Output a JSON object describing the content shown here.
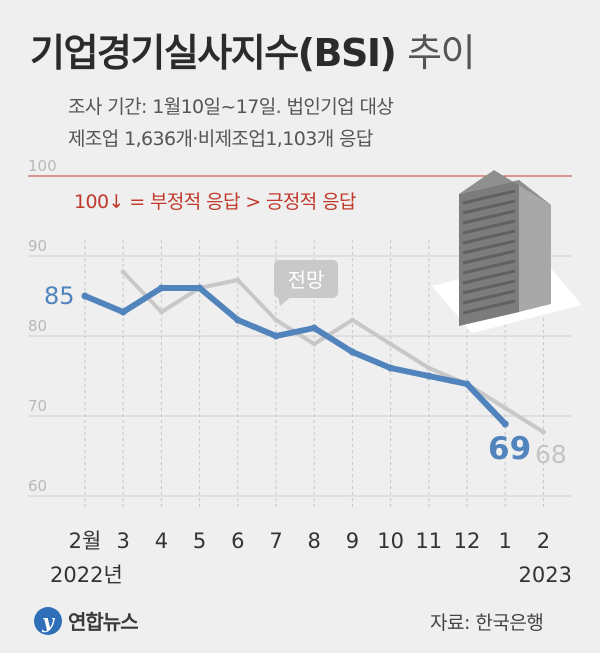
{
  "header": {
    "title": "기업경기실사지수(BSI)",
    "title_suffix": "추이",
    "survey_line": "조사 기간: 1월10일~17일. 법인기업 대상",
    "sample_line": "제조업 1,636개·비제조업1,103개 응답"
  },
  "chart_data": {
    "type": "line",
    "categories": [
      "2월",
      "3",
      "4",
      "5",
      "6",
      "7",
      "8",
      "9",
      "10",
      "11",
      "12",
      "1",
      "2"
    ],
    "year_labels": [
      {
        "text": "2022년",
        "category_index": 0
      },
      {
        "text": "2023",
        "category_index": 12
      }
    ],
    "yticks": [
      60,
      70,
      80,
      90,
      100
    ],
    "ylim": [
      60,
      100
    ],
    "reference_line": {
      "value": 100,
      "label": "100↓ = 부정적 응답 > 긍정적 응답",
      "color": "#c0392b"
    },
    "series": [
      {
        "name": "전망",
        "color": "#c8c8c8",
        "values": [
          null,
          88,
          83,
          86,
          87,
          82,
          79,
          82,
          79,
          76,
          74,
          71,
          68
        ],
        "end_label": "68"
      },
      {
        "name": "",
        "color": "#5183bd",
        "values": [
          85,
          83,
          86,
          86,
          82,
          80,
          81,
          78,
          76,
          75,
          74,
          69,
          null
        ],
        "start_label": "85",
        "end_label": "69"
      }
    ]
  },
  "footer": {
    "logo_mark": "y",
    "logo_text": "연합뉴스",
    "source": "자료: 한국은행"
  },
  "colors": {
    "background": "#efefef",
    "actual_line": "#5183bd",
    "outlook_line": "#c8c8c8",
    "reference": "#c0392b",
    "building_top": "#8f8f8f",
    "building_front": "#7c7c7c",
    "building_side": "#a8a8a8",
    "base": "#ffffff"
  },
  "icons": {
    "building": "office-building-icon"
  }
}
